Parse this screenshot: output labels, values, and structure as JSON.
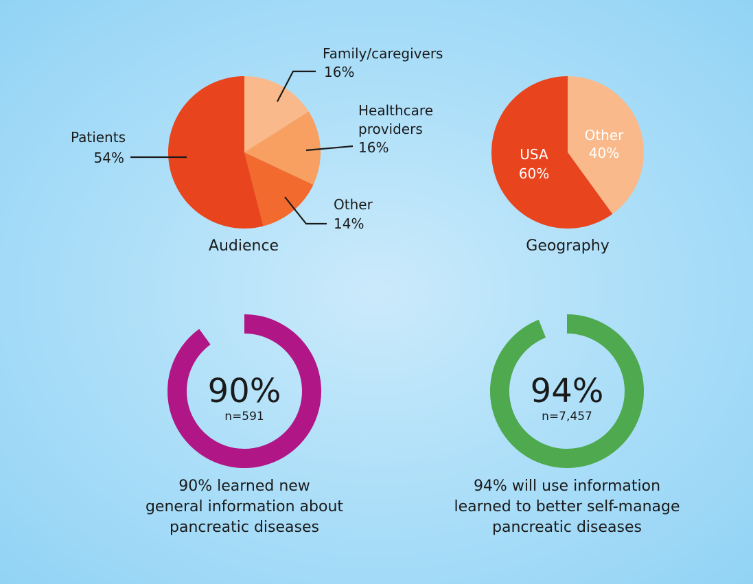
{
  "chart_data": [
    {
      "type": "pie",
      "title": "Audience",
      "slices": [
        {
          "label": "Patients",
          "value": 54,
          "value_label": "54%",
          "color": "#e8441d"
        },
        {
          "label": "Family/caregivers",
          "value": 16,
          "value_label": "16%",
          "color": "#f9b98a"
        },
        {
          "label_lines": [
            "Healthcare",
            "providers"
          ],
          "value": 16,
          "value_label": "16%",
          "color": "#f7a062"
        },
        {
          "label": "Other",
          "value": 14,
          "value_label": "14%",
          "color": "#f26a2d"
        }
      ]
    },
    {
      "type": "pie",
      "title": "Geography",
      "slices": [
        {
          "label": "Other",
          "value": 40,
          "value_label": "40%",
          "color": "#f9b98a",
          "text_color": "#ffffff"
        },
        {
          "label": "USA",
          "value": 60,
          "value_label": "60%",
          "color": "#e8441d",
          "text_color": "#ffffff"
        }
      ]
    },
    {
      "type": "donut",
      "value": 90,
      "value_label": "90%",
      "n_label": "n=591",
      "color": "#b01685",
      "caption_lines": [
        "90% learned new",
        "general information about",
        "pancreatic diseases"
      ]
    },
    {
      "type": "donut",
      "value": 94,
      "value_label": "94%",
      "n_label": "n=7,457",
      "color": "#4fa94f",
      "caption_lines": [
        "94% will use information",
        "learned to better self-manage",
        "pancreatic diseases"
      ]
    }
  ]
}
